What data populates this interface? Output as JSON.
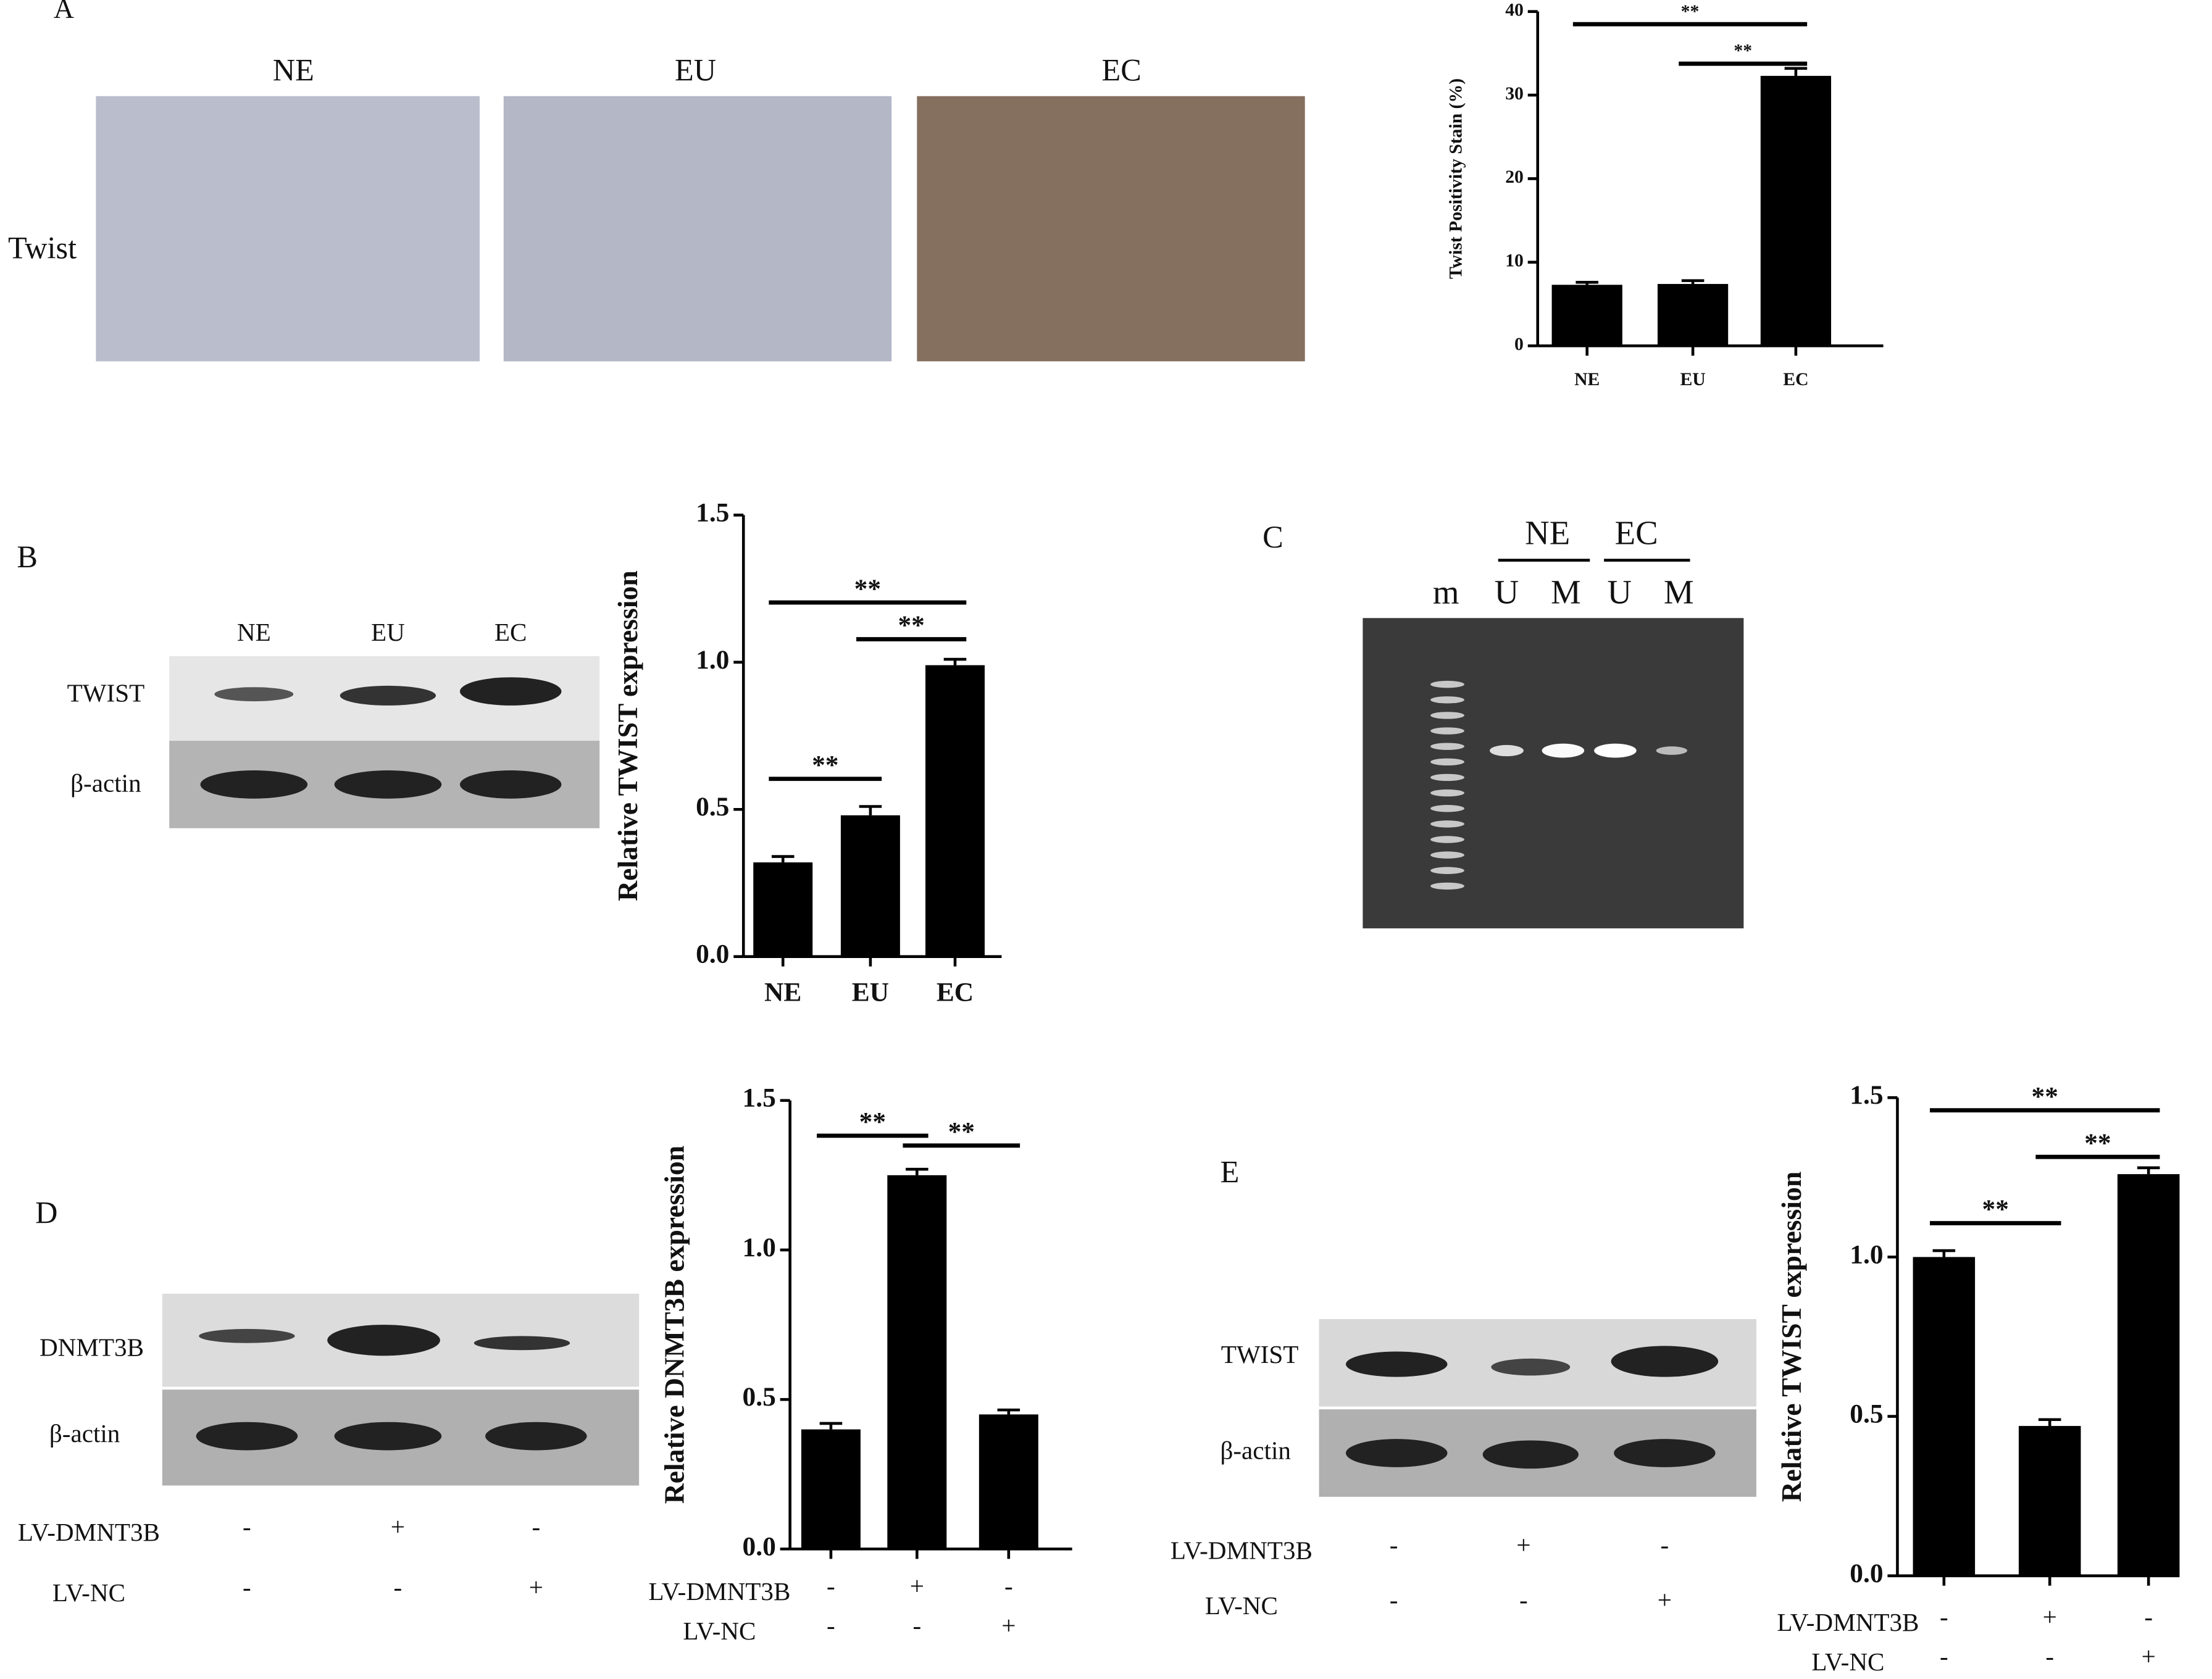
{
  "chart_data": [
    {
      "type": "bar",
      "ylabel": "Twist Positivity Stain (%)",
      "categories": [
        "NE",
        "EU",
        "EC"
      ],
      "values": [
        7.3,
        7.4,
        32.3
      ],
      "errors": [
        0.3,
        0.4,
        0.9
      ],
      "color": "#000000",
      "ylim": [
        0,
        40
      ],
      "yticks": [
        0,
        10,
        20,
        30,
        40
      ],
      "annotations": [
        {
          "from": 0,
          "to": 2,
          "text": "**"
        },
        {
          "from": 1,
          "to": 2,
          "text": "**"
        }
      ]
    },
    {
      "type": "bar",
      "ylabel": "Relative TWIST expression",
      "categories": [
        "NE",
        "EU",
        "EC"
      ],
      "values": [
        0.32,
        0.48,
        0.99
      ],
      "errors": [
        0.02,
        0.03,
        0.02
      ],
      "color": "#000000",
      "ylim": [
        0,
        1.5
      ],
      "yticks": [
        {
          "value": 0,
          "label": "0.0"
        },
        0.5,
        {
          "value": 1,
          "label": "1.0"
        },
        1.5
      ],
      "annotations": [
        {
          "from": 0,
          "to": 2,
          "text": "**"
        },
        {
          "from": 1,
          "to": 2,
          "text": "**"
        },
        {
          "from": 0,
          "to": 1,
          "text": "**"
        }
      ]
    },
    {
      "type": "bar",
      "ylabel": "Relative DNMT3B expression",
      "conditions": [
        {
          "name": "LV-DMNT3B",
          "signs": [
            "-",
            "+",
            "-"
          ]
        },
        {
          "name": "LV-NC",
          "signs": [
            "-",
            "-",
            "+"
          ]
        }
      ],
      "values": [
        0.4,
        1.25,
        0.45
      ],
      "errors": [
        0.02,
        0.02,
        0.015
      ],
      "color": "#000000",
      "ylim": [
        0,
        1.5
      ],
      "yticks": [
        {
          "value": 0,
          "label": "0.0"
        },
        0.5,
        {
          "value": 1,
          "label": "1.0"
        },
        1.5
      ],
      "annotations": [
        {
          "from": 0,
          "to": 1,
          "text": "**"
        },
        {
          "from": 1,
          "to": 2,
          "text": "**"
        }
      ]
    },
    {
      "type": "bar",
      "ylabel": "Relative TWIST expression",
      "conditions": [
        {
          "name": "LV-DMNT3B",
          "signs": [
            "-",
            "+",
            "-"
          ]
        },
        {
          "name": "LV-NC",
          "signs": [
            "-",
            "-",
            "+"
          ]
        }
      ],
      "values": [
        1.0,
        0.47,
        1.26
      ],
      "errors": [
        0.02,
        0.02,
        0.02
      ],
      "color": "#000000",
      "ylim": [
        0,
        1.5
      ],
      "yticks": [
        {
          "value": 0,
          "label": "0.0"
        },
        0.5,
        {
          "value": 1,
          "label": "1.0"
        },
        1.5
      ],
      "annotations": [
        {
          "from": 0,
          "to": 2,
          "text": "**"
        },
        {
          "from": 1,
          "to": 2,
          "text": "**"
        },
        {
          "from": 0,
          "to": 1,
          "text": "**"
        }
      ]
    }
  ],
  "figure": {
    "panel_labels": [
      "A",
      "B",
      "C",
      "D",
      "E"
    ],
    "panel_a": {
      "row_label": "Twist",
      "columns": [
        "NE",
        "EU",
        "EC"
      ]
    },
    "panel_b_blot": {
      "columns": [
        "NE",
        "EU",
        "EC"
      ],
      "rows": [
        "TWIST",
        "β-actin"
      ]
    },
    "panel_c": {
      "groups": [
        "NE",
        "EC"
      ],
      "lanes": [
        "m",
        "U",
        "M",
        "U",
        "M"
      ]
    },
    "panel_d_blot": {
      "rows": [
        "DNMT3B",
        "β-actin"
      ],
      "conditions": [
        {
          "name": "LV-DMNT3B",
          "signs": [
            "-",
            "+",
            "-"
          ]
        },
        {
          "name": "LV-NC",
          "signs": [
            "-",
            "-",
            "+"
          ]
        }
      ]
    },
    "panel_e_blot": {
      "rows": [
        "TWIST",
        "β-actin"
      ],
      "conditions": [
        {
          "name": "LV-DMNT3B",
          "signs": [
            "-",
            "+",
            "-"
          ]
        },
        {
          "name": "LV-NC",
          "signs": [
            "-",
            "-",
            "+"
          ]
        }
      ]
    }
  }
}
